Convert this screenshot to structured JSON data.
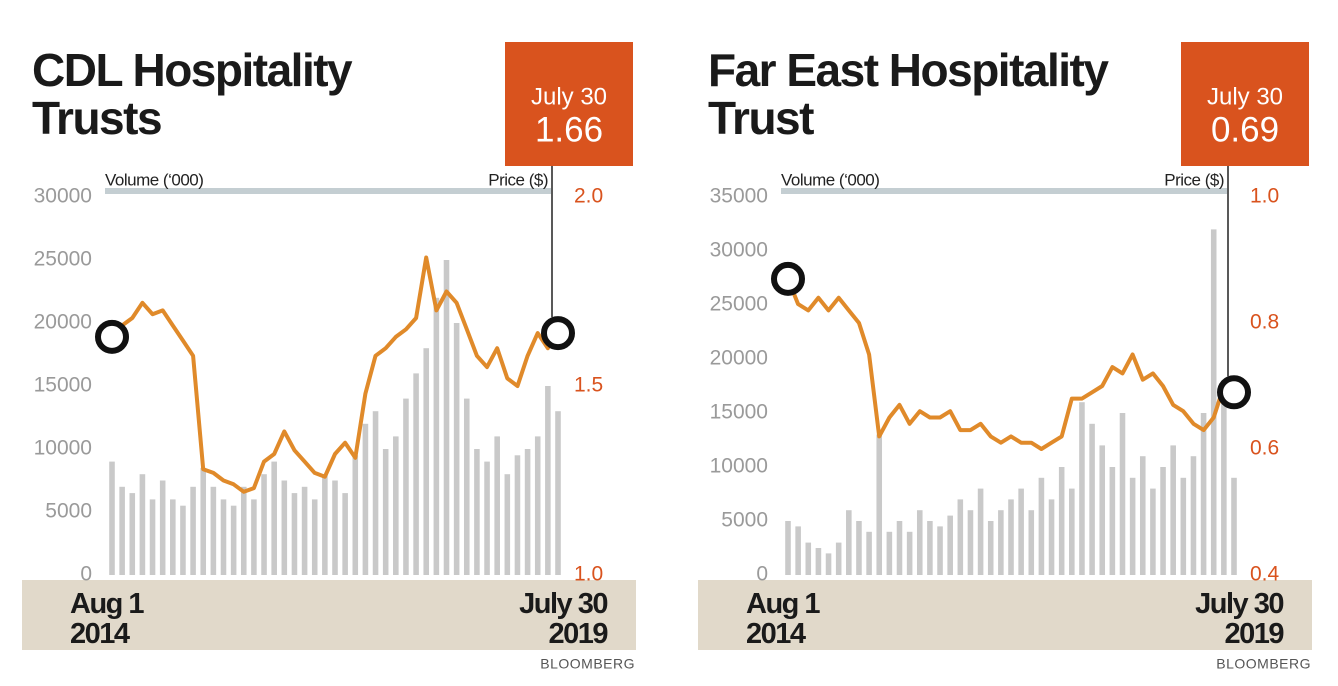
{
  "chart_data": [
    {
      "type": "combo",
      "title": "CDL Hospitality\nTrusts",
      "callout_label": "July 30",
      "callout_value": 1.66,
      "y_label": "Volume (‘000)",
      "y2_label": "Price ($)",
      "source": "BLOOMBERG",
      "categories": [
        "Aug 1\n2014",
        null,
        null,
        null,
        null,
        null,
        null,
        null,
        null,
        null,
        null,
        null,
        null,
        null,
        null,
        null,
        null,
        null,
        null,
        null,
        null,
        null,
        null,
        null,
        null,
        null,
        null,
        null,
        null,
        null,
        null,
        null,
        null,
        null,
        null,
        null,
        null,
        null,
        null,
        null,
        null,
        null,
        null,
        null,
        "July 30\n2019"
      ],
      "series": [
        {
          "kind": "bar",
          "color": "#c9c9c9",
          "values": [
            9000,
            7000,
            6500,
            8000,
            6000,
            7500,
            6000,
            5500,
            7000,
            8500,
            7000,
            6000,
            5500,
            7000,
            6000,
            8000,
            9000,
            7500,
            6500,
            7000,
            6000,
            8000,
            7500,
            6500,
            9500,
            12000,
            13000,
            10000,
            11000,
            14000,
            16000,
            18000,
            22000,
            25000,
            20000,
            14000,
            10000,
            9000,
            11000,
            8000,
            9500,
            10000,
            11000,
            15000,
            13000
          ]
        },
        {
          "kind": "line",
          "axis": "y2",
          "color": "#e08a2a",
          "values": [
            1.63,
            1.66,
            1.68,
            1.72,
            1.69,
            1.7,
            1.66,
            1.62,
            1.58,
            1.28,
            1.27,
            1.25,
            1.24,
            1.22,
            1.23,
            1.3,
            1.32,
            1.38,
            1.33,
            1.3,
            1.27,
            1.26,
            1.32,
            1.35,
            1.31,
            1.48,
            1.58,
            1.6,
            1.63,
            1.65,
            1.68,
            1.84,
            1.7,
            1.75,
            1.72,
            1.65,
            1.58,
            1.55,
            1.6,
            1.52,
            1.5,
            1.58,
            1.64,
            1.6,
            1.64
          ]
        }
      ],
      "ylim": [
        0,
        30000
      ],
      "yticks": [
        0,
        5000,
        10000,
        15000,
        20000,
        25000,
        30000
      ],
      "y2lim": [
        1,
        2
      ],
      "y2ticks": [
        {
          "value": 1,
          "label": "1.0"
        },
        1.5,
        {
          "value": 2,
          "label": "2.0"
        }
      ]
    },
    {
      "type": "combo",
      "title": "Far East Hospitality\nTrust",
      "callout_label": "July 30",
      "callout_value": 0.69,
      "y_label": "Volume (‘000)",
      "y2_label": "Price ($)",
      "source": "BLOOMBERG",
      "categories": [
        "Aug 1\n2014",
        null,
        null,
        null,
        null,
        null,
        null,
        null,
        null,
        null,
        null,
        null,
        null,
        null,
        null,
        null,
        null,
        null,
        null,
        null,
        null,
        null,
        null,
        null,
        null,
        null,
        null,
        null,
        null,
        null,
        null,
        null,
        null,
        null,
        null,
        null,
        null,
        null,
        null,
        null,
        null,
        null,
        null,
        null,
        "July 30\n2019"
      ],
      "series": [
        {
          "kind": "bar",
          "color": "#c9c9c9",
          "values": [
            5000,
            4500,
            3000,
            2500,
            2000,
            3000,
            6000,
            5000,
            4000,
            13000,
            4000,
            5000,
            4000,
            6000,
            5000,
            4500,
            5500,
            7000,
            6000,
            8000,
            5000,
            6000,
            7000,
            8000,
            6000,
            9000,
            7000,
            10000,
            8000,
            16000,
            14000,
            12000,
            10000,
            15000,
            9000,
            11000,
            8000,
            10000,
            12000,
            9000,
            11000,
            15000,
            32000,
            18000,
            9000
          ]
        },
        {
          "kind": "line",
          "axis": "y2",
          "color": "#e08a2a",
          "values": [
            0.87,
            0.83,
            0.82,
            0.84,
            0.82,
            0.84,
            0.82,
            0.8,
            0.75,
            0.62,
            0.65,
            0.67,
            0.64,
            0.66,
            0.65,
            0.65,
            0.66,
            0.63,
            0.63,
            0.64,
            0.62,
            0.61,
            0.62,
            0.61,
            0.61,
            0.6,
            0.61,
            0.62,
            0.68,
            0.68,
            0.69,
            0.7,
            0.73,
            0.72,
            0.75,
            0.71,
            0.72,
            0.7,
            0.67,
            0.66,
            0.64,
            0.63,
            0.65,
            0.7,
            0.69
          ]
        }
      ],
      "ylim": [
        0,
        35000
      ],
      "yticks": [
        0,
        5000,
        10000,
        15000,
        20000,
        25000,
        30000,
        35000
      ],
      "y2lim": [
        0.4,
        1
      ],
      "y2ticks": [
        0.4,
        0.6,
        0.8,
        {
          "value": 1,
          "label": "1.0"
        }
      ]
    }
  ]
}
